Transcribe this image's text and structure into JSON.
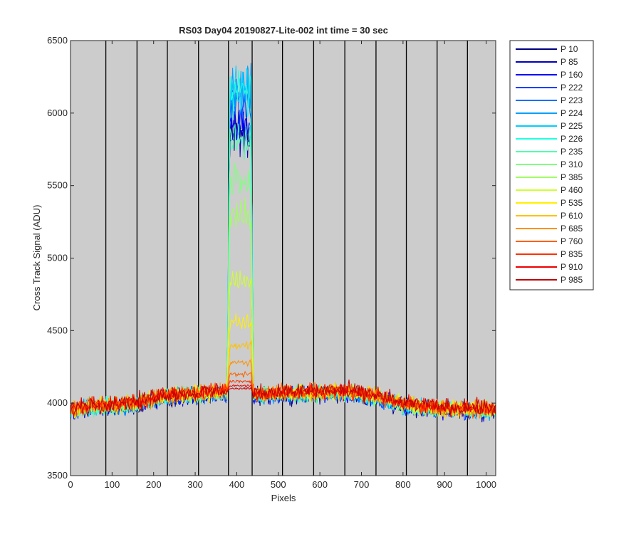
{
  "chart_data": {
    "type": "line",
    "title": "RS03 Day04 20190827-Lite-002 int time = 30 sec",
    "xlabel": "Pixels",
    "ylabel": "Cross Track Signal (ADU)",
    "xlim": [
      0,
      1023
    ],
    "ylim": [
      3500,
      6500
    ],
    "xticks": [
      0,
      100,
      200,
      300,
      400,
      500,
      600,
      700,
      800,
      900,
      1000
    ],
    "yticks": [
      3500,
      4000,
      4500,
      5000,
      5500,
      6000,
      6500
    ],
    "background": "#cccccc",
    "grid": false,
    "vertical_lines_x": [
      85,
      160,
      233,
      308,
      380,
      437,
      510,
      585,
      660,
      735,
      808,
      882,
      955
    ],
    "legend_position": "outside-right",
    "baseline": {
      "x": [
        0,
        50,
        150,
        220,
        300,
        380,
        440,
        520,
        660,
        740,
        800,
        900,
        1023
      ],
      "y": [
        3950,
        3975,
        3990,
        4045,
        4060,
        4080,
        4060,
        4065,
        4075,
        4040,
        3985,
        3960,
        3950
      ]
    },
    "peak_region": [
      380,
      437
    ],
    "series": [
      {
        "name": "P 10",
        "color": "#00007f",
        "peak": 5850
      },
      {
        "name": "P 85",
        "color": "#0000c0",
        "peak": 5870
      },
      {
        "name": "P 160",
        "color": "#0000ff",
        "peak": 5900
      },
      {
        "name": "P 222",
        "color": "#0040ff",
        "peak": 6050
      },
      {
        "name": "P 223",
        "color": "#0070ff",
        "peak": 6120
      },
      {
        "name": "P 224",
        "color": "#00a0ff",
        "peak": 6150
      },
      {
        "name": "P 225",
        "color": "#00cfff",
        "peak": 6160
      },
      {
        "name": "P 226",
        "color": "#20ffdf",
        "peak": 6150
      },
      {
        "name": "P 235",
        "color": "#50ffaf",
        "peak": 5800
      },
      {
        "name": "P 310",
        "color": "#80ff80",
        "peak": 5550
      },
      {
        "name": "P 385",
        "color": "#a0ff60",
        "peak": 5300
      },
      {
        "name": "P 460",
        "color": "#cfff30",
        "peak": 4850
      },
      {
        "name": "P 535",
        "color": "#ffef00",
        "peak": 4560
      },
      {
        "name": "P 610",
        "color": "#ffc000",
        "peak": 4400
      },
      {
        "name": "P 685",
        "color": "#ff9000",
        "peak": 4280
      },
      {
        "name": "P 760",
        "color": "#ff6000",
        "peak": 4200
      },
      {
        "name": "P 835",
        "color": "#ff3000",
        "peak": 4150
      },
      {
        "name": "P 910",
        "color": "#ef0000",
        "peak": 4120
      },
      {
        "name": "P 985",
        "color": "#c00000",
        "peak": 4100
      }
    ]
  }
}
